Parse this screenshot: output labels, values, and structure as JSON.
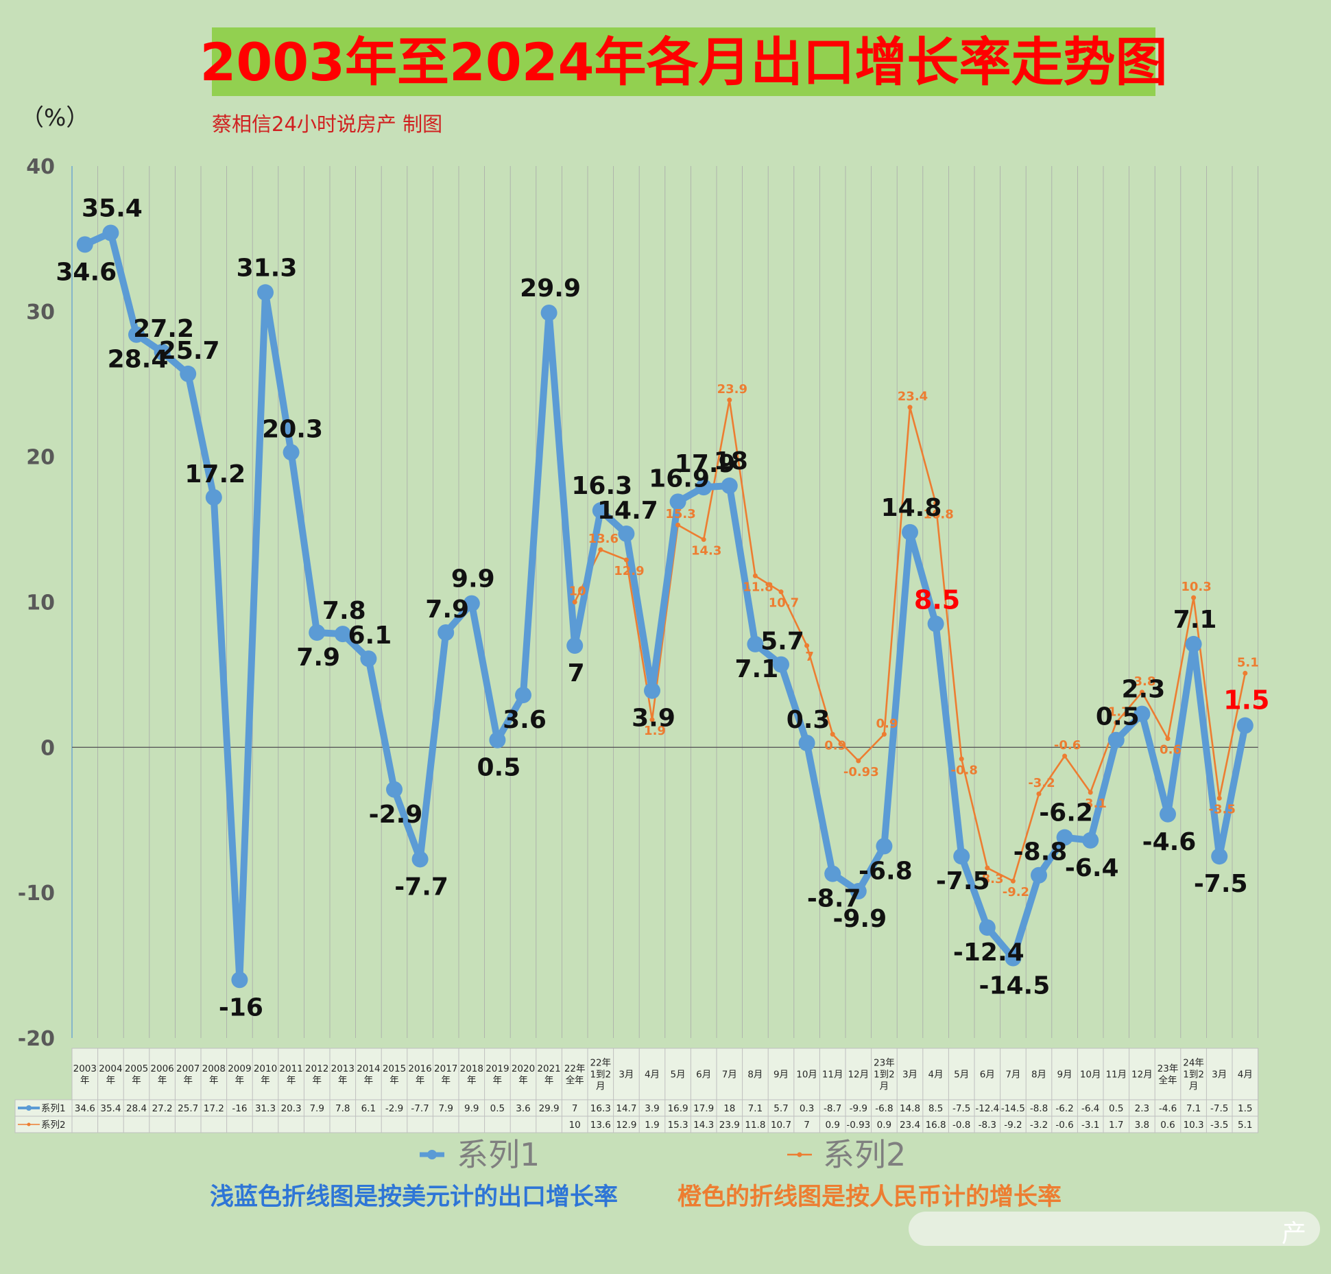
{
  "header": {
    "title": "2003年至2024年各月出口增长率走势图",
    "unit": "（%）",
    "author": "蔡相信24小时说房产  制图"
  },
  "footer": {
    "note_series1": "浅蓝色折线图是按美元计的出口增长率",
    "note_series2": "橙色的折线图是按人民币计的增长率",
    "watermark": "产"
  },
  "colors": {
    "background": "#c7e0b9",
    "title_bg": "#92d050",
    "title_text": "#ff0000",
    "series1": "#5b9bd5",
    "series2": "#ed7d31",
    "note_blue": "#2e75d6",
    "note_orange": "#ed7d31"
  },
  "chart_data": {
    "type": "line",
    "title": "2003年至2024年各月出口增长率走势图",
    "ylabel": "（%）",
    "xlabel": "",
    "ylim": [
      -20,
      40
    ],
    "yticks": [
      40,
      30,
      20,
      10,
      0,
      -10,
      -20
    ],
    "grid": "vertical",
    "legend_position": "bottom",
    "categories": [
      [
        "2003",
        "年"
      ],
      [
        "2004",
        "年"
      ],
      [
        "2005",
        "年"
      ],
      [
        "2006",
        "年"
      ],
      [
        "2007",
        "年"
      ],
      [
        "2008",
        "年"
      ],
      [
        "2009",
        "年"
      ],
      [
        "2010",
        "年"
      ],
      [
        "2011",
        "年"
      ],
      [
        "2012",
        "年"
      ],
      [
        "2013",
        "年"
      ],
      [
        "2014",
        "年"
      ],
      [
        "2015",
        "年"
      ],
      [
        "2016",
        "年"
      ],
      [
        "2017",
        "年"
      ],
      [
        "2018",
        "年"
      ],
      [
        "2019",
        "年"
      ],
      [
        "2020",
        "年"
      ],
      [
        "2021",
        "年"
      ],
      [
        "22年",
        "全年"
      ],
      [
        "22年",
        "1到2",
        "月"
      ],
      [
        "3月"
      ],
      [
        "4月"
      ],
      [
        "5月"
      ],
      [
        "6月"
      ],
      [
        "7月"
      ],
      [
        "8月"
      ],
      [
        "9月"
      ],
      [
        "10月"
      ],
      [
        "11月"
      ],
      [
        "12月"
      ],
      [
        "23年",
        "1到2",
        "月"
      ],
      [
        "3月"
      ],
      [
        "4月"
      ],
      [
        "5月"
      ],
      [
        "6月"
      ],
      [
        "7月"
      ],
      [
        "8月"
      ],
      [
        "9月"
      ],
      [
        "10月"
      ],
      [
        "11月"
      ],
      [
        "12月"
      ],
      [
        "23年",
        "全年"
      ],
      [
        "24年",
        "1到2",
        "月"
      ],
      [
        "3月"
      ],
      [
        "4月"
      ]
    ],
    "series": [
      {
        "name": "系列1",
        "values": [
          34.6,
          35.4,
          28.4,
          27.2,
          25.7,
          17.2,
          -16,
          31.3,
          20.3,
          7.9,
          7.8,
          6.1,
          -2.9,
          -7.7,
          7.9,
          9.9,
          0.5,
          3.6,
          29.9,
          7,
          16.3,
          14.7,
          3.9,
          16.9,
          17.9,
          18,
          7.1,
          5.7,
          0.3,
          -8.7,
          -9.9,
          -6.8,
          14.8,
          8.5,
          -7.5,
          -12.4,
          -14.5,
          -8.8,
          -6.2,
          -6.4,
          0.5,
          2.3,
          -4.6,
          7.1,
          -7.5,
          1.5
        ]
      },
      {
        "name": "系列2",
        "values": [
          null,
          null,
          null,
          null,
          null,
          null,
          null,
          null,
          null,
          null,
          null,
          null,
          null,
          null,
          null,
          null,
          null,
          null,
          null,
          10,
          13.6,
          12.9,
          1.9,
          15.3,
          14.3,
          23.9,
          11.8,
          10.7,
          7,
          0.9,
          -0.93,
          0.9,
          23.4,
          16.8,
          -0.8,
          -8.3,
          -9.2,
          -3.2,
          -0.6,
          -3.1,
          1.7,
          3.8,
          0.6,
          10.3,
          -3.5,
          5.1
        ]
      }
    ],
    "highlighted_labels": [
      {
        "series": "系列1",
        "index": 33,
        "value": 8.5,
        "color": "#ff0000"
      },
      {
        "series": "系列1",
        "index": 45,
        "value": 1.5,
        "color": "#ff0000"
      }
    ]
  }
}
